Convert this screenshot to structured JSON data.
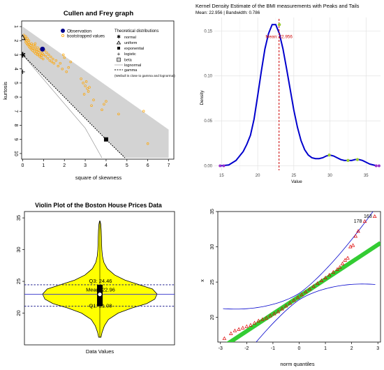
{
  "chart_data": [
    {
      "type": "scatter",
      "title": "Cullen and Frey graph",
      "xlabel": "square of skewness",
      "ylabel": "kurtosis",
      "xlim": [
        0,
        7
      ],
      "ylim": [
        10,
        1
      ],
      "x_ticks": [
        "0",
        "1",
        "2",
        "3",
        "4",
        "5",
        "6",
        "7"
      ],
      "y_ticks": [
        "1",
        "2",
        "3",
        "4",
        "5",
        "6",
        "7",
        "8",
        "9",
        "10"
      ],
      "legend": {
        "title": "Theoretical distributions",
        "observation_label": "Observation",
        "bootstrap_label": "bootstrapped values",
        "items": [
          "normal",
          "uniform",
          "exponential",
          "logistic",
          "beta",
          "lognormal",
          "gamma"
        ],
        "note": "(Weibull is close to gamma and lognormal)",
        "placement": "top-right"
      },
      "observation": {
        "x": 0.95,
        "y": 2.6
      },
      "bootstrap": [
        [
          0.05,
          1.6
        ],
        [
          0.08,
          1.75
        ],
        [
          0.12,
          1.9
        ],
        [
          0.15,
          2.1
        ],
        [
          0.18,
          2.0
        ],
        [
          0.2,
          2.2
        ],
        [
          0.22,
          1.85
        ],
        [
          0.25,
          2.3
        ],
        [
          0.28,
          2.15
        ],
        [
          0.3,
          2.4
        ],
        [
          0.32,
          2.25
        ],
        [
          0.35,
          2.5
        ],
        [
          0.38,
          2.35
        ],
        [
          0.4,
          2.6
        ],
        [
          0.42,
          2.2
        ],
        [
          0.45,
          2.45
        ],
        [
          0.48,
          2.7
        ],
        [
          0.5,
          2.55
        ],
        [
          0.52,
          2.3
        ],
        [
          0.55,
          2.8
        ],
        [
          0.58,
          2.6
        ],
        [
          0.6,
          2.4
        ],
        [
          0.62,
          2.9
        ],
        [
          0.65,
          2.65
        ],
        [
          0.68,
          2.75
        ],
        [
          0.7,
          3.0
        ],
        [
          0.72,
          2.5
        ],
        [
          0.75,
          2.85
        ],
        [
          0.78,
          2.7
        ],
        [
          0.8,
          3.1
        ],
        [
          0.82,
          2.95
        ],
        [
          0.85,
          2.6
        ],
        [
          0.88,
          3.2
        ],
        [
          0.9,
          2.8
        ],
        [
          0.92,
          3.05
        ],
        [
          0.95,
          2.9
        ],
        [
          0.98,
          3.3
        ],
        [
          1.0,
          3.0
        ],
        [
          1.05,
          2.7
        ],
        [
          1.1,
          3.1
        ],
        [
          1.15,
          2.85
        ],
        [
          1.2,
          3.25
        ],
        [
          1.25,
          3.0
        ],
        [
          1.3,
          3.4
        ],
        [
          1.35,
          3.15
        ],
        [
          1.4,
          3.5
        ],
        [
          1.45,
          3.3
        ],
        [
          1.5,
          3.6
        ],
        [
          1.6,
          3.4
        ],
        [
          1.7,
          3.8
        ],
        [
          1.8,
          3.6
        ],
        [
          1.9,
          4.0
        ],
        [
          2.0,
          3.2
        ],
        [
          2.1,
          4.2
        ],
        [
          2.2,
          3.9
        ],
        [
          0.3,
          2.0
        ],
        [
          0.6,
          2.2
        ],
        [
          0.15,
          1.7
        ],
        [
          1.95,
          3.0
        ],
        [
          2.3,
          3.5
        ],
        [
          2.8,
          4.7
        ],
        [
          2.9,
          5.0
        ],
        [
          3.0,
          5.2
        ],
        [
          3.05,
          4.9
        ],
        [
          3.1,
          5.4
        ],
        [
          3.15,
          5.6
        ],
        [
          3.2,
          5.3
        ],
        [
          2.95,
          5.8
        ],
        [
          3.4,
          6.2
        ],
        [
          3.3,
          6.6
        ],
        [
          3.9,
          6.5
        ],
        [
          4.0,
          6.3
        ],
        [
          3.8,
          6.9
        ],
        [
          4.6,
          7.2
        ],
        [
          5.8,
          7.0
        ],
        [
          6.0,
          9.3
        ]
      ],
      "uniform": {
        "x": 0,
        "y": 1.8
      },
      "normal": {
        "x": 0,
        "y": 3
      },
      "logistic": {
        "x": 0,
        "y": 4.2
      },
      "exponential": {
        "x": 4,
        "y": 9
      },
      "gamma_line": [
        [
          0,
          3
        ],
        [
          4,
          9
        ],
        [
          4.9,
          10.3
        ]
      ],
      "lognormal_line": [
        [
          0,
          3
        ],
        [
          1.5,
          5.6
        ],
        [
          3,
          8.2
        ],
        [
          3.8,
          10.3
        ]
      ],
      "beta_region": [
        [
          0,
          1
        ],
        [
          7,
          8.3
        ],
        [
          7,
          10.3
        ],
        [
          4.9,
          10.3
        ],
        [
          0,
          3
        ]
      ],
      "colors": {
        "observation": "#00008b",
        "bootstrap": "#ffa500",
        "beta_region": "#d3d3d3"
      }
    },
    {
      "type": "line",
      "title": "Kernel Density Estimate of the BMI measurements with Peaks and Tails",
      "subtitle": "Mean: 22.956  | Bandwidth: 0.786",
      "xlabel": "Value",
      "ylabel": "Density",
      "xlim": [
        14,
        37
      ],
      "ylim": [
        -0.005,
        0.165
      ],
      "x_ticks": [
        15,
        20,
        25,
        30,
        35
      ],
      "y_ticks": [
        "0.00",
        "0.05",
        "0.10",
        "0.15"
      ],
      "x": [
        14.8,
        16,
        17,
        18,
        18.5,
        19,
        19.5,
        20,
        20.5,
        21,
        21.5,
        22,
        22.5,
        23,
        23.5,
        24,
        24.5,
        25,
        25.5,
        26,
        26.5,
        27,
        27.5,
        28,
        28.5,
        29,
        29.5,
        30,
        30.5,
        31,
        31.5,
        32,
        32.5,
        33,
        33.5,
        34,
        34.5,
        35,
        35.5,
        36,
        36.5
      ],
      "density": [
        0.0,
        0.001,
        0.006,
        0.016,
        0.024,
        0.034,
        0.052,
        0.078,
        0.105,
        0.13,
        0.147,
        0.157,
        0.157,
        0.147,
        0.13,
        0.108,
        0.085,
        0.062,
        0.043,
        0.028,
        0.018,
        0.012,
        0.009,
        0.008,
        0.008,
        0.009,
        0.011,
        0.012,
        0.011,
        0.009,
        0.007,
        0.006,
        0.006,
        0.006,
        0.007,
        0.007,
        0.006,
        0.004,
        0.002,
        0.001,
        0.0
      ],
      "mean_label": "Mean: 22.956",
      "mean": 22.956,
      "peaks": [
        [
          23.0,
          0.157
        ],
        [
          29.9,
          0.012
        ],
        [
          32.5,
          0.006
        ],
        [
          33.8,
          0.007
        ]
      ],
      "tails": [
        [
          14.8,
          0.0
        ],
        [
          15.3,
          0.0
        ],
        [
          36.4,
          0.0
        ],
        [
          36.8,
          0.0
        ]
      ],
      "colors": {
        "curve": "#0000cd",
        "mean": "#cc0000",
        "peak": "#9acd32",
        "tail": "#9932cc"
      }
    },
    {
      "type": "violin",
      "title": "Violin Plot of the Boston House Prices Data",
      "xlabel": "Data Values",
      "ylim": [
        15,
        36
      ],
      "y_ticks": [
        20,
        25,
        30,
        35
      ],
      "q1": 21.08,
      "median": 22.96,
      "q3": 24.46,
      "mean": 22.96,
      "q1_label": "Q1: 21.08",
      "mean_label": "Mean: 22.96",
      "q3_label": "Q3: 24.46",
      "min": 16.2,
      "max": 34.5,
      "profile": [
        [
          16.2,
          0.02
        ],
        [
          17,
          0.04
        ],
        [
          18,
          0.08
        ],
        [
          19,
          0.15
        ],
        [
          20,
          0.32
        ],
        [
          20.8,
          0.56
        ],
        [
          21.5,
          0.82
        ],
        [
          22.2,
          0.96
        ],
        [
          23,
          1.0
        ],
        [
          23.8,
          0.92
        ],
        [
          24.5,
          0.68
        ],
        [
          25.2,
          0.44
        ],
        [
          26,
          0.26
        ],
        [
          27,
          0.13
        ],
        [
          28,
          0.07
        ],
        [
          29,
          0.045
        ],
        [
          30,
          0.035
        ],
        [
          31,
          0.03
        ],
        [
          32,
          0.028
        ],
        [
          33,
          0.024
        ],
        [
          34,
          0.016
        ],
        [
          34.5,
          0.005
        ]
      ],
      "colors": {
        "fill": "#ffff00",
        "line": "#000080"
      }
    },
    {
      "type": "scatter",
      "title": "",
      "xlabel": "norm quantiles",
      "ylabel": "x",
      "xlim": [
        -3.1,
        3.1
      ],
      "ylim": [
        16.5,
        35
      ],
      "x_ticks": [
        -3,
        -2,
        -1,
        0,
        1,
        2,
        3
      ],
      "y_ticks": [
        20,
        25,
        30,
        35
      ],
      "ref_line": {
        "intercept": 22.95,
        "slope": 2.45
      },
      "labels": [
        {
          "text": "163",
          "x": 2.88,
          "y": 34.3
        },
        {
          "text": "178",
          "x": 2.5,
          "y": 33.6
        }
      ],
      "points": [
        [
          -2.85,
          17.0
        ],
        [
          -2.6,
          17.7
        ],
        [
          -2.45,
          18.1
        ],
        [
          -2.3,
          18.3
        ],
        [
          -2.15,
          18.5
        ],
        [
          -2.0,
          18.7
        ],
        [
          -1.85,
          18.9
        ],
        [
          -1.7,
          19.2
        ],
        [
          -1.55,
          19.5
        ],
        [
          -1.4,
          19.7
        ],
        [
          -1.25,
          19.9
        ],
        [
          -1.1,
          20.2
        ],
        [
          -0.95,
          20.5
        ],
        [
          -0.8,
          20.8
        ],
        [
          -0.65,
          21.2
        ],
        [
          -0.5,
          21.6
        ],
        [
          -0.35,
          22.0
        ],
        [
          -0.2,
          22.4
        ],
        [
          -0.05,
          22.8
        ],
        [
          0.1,
          23.2
        ],
        [
          0.25,
          23.6
        ],
        [
          0.4,
          24.0
        ],
        [
          0.55,
          24.4
        ],
        [
          0.7,
          24.8
        ],
        [
          0.85,
          25.2
        ],
        [
          1.0,
          25.6
        ],
        [
          1.15,
          26.0
        ],
        [
          1.3,
          26.4
        ],
        [
          1.45,
          26.8
        ],
        [
          1.55,
          27.1
        ],
        [
          1.65,
          27.6
        ],
        [
          1.75,
          28.1
        ],
        [
          1.85,
          28.4
        ],
        [
          1.95,
          30.0
        ],
        [
          2.05,
          30.2
        ],
        [
          2.15,
          31.5
        ],
        [
          2.25,
          32.2
        ],
        [
          2.5,
          33.6
        ],
        [
          2.88,
          34.3
        ]
      ],
      "colors": {
        "points": "#dd0000",
        "ref_line": "#33cc33",
        "envelope": "#0000cc"
      }
    }
  ]
}
